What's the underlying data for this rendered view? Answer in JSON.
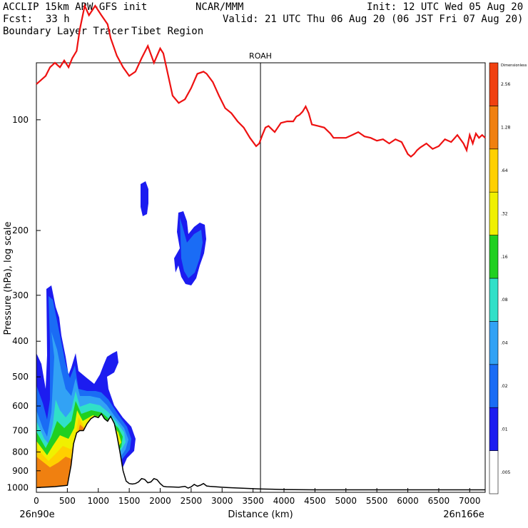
{
  "header": {
    "model": "ACCLIP 15km ARW-GFS init",
    "org": "NCAR/MMM",
    "init": "Init: 12 UTC Wed 05 Aug 20",
    "fcst_label": "Fcst:",
    "fcst_value": "33 h",
    "valid": "Valid: 21 UTC Thu 06 Aug 20 (06 JST Fri 07 Aug 20)",
    "product": "Boundary Layer Tracer",
    "region": "Tibet Region"
  },
  "chart_data": {
    "type": "contour_cross_section",
    "title": "ROAH",
    "xlabel": "Distance (km)",
    "ylabel": "Pressure (hPa), log scale",
    "x_start_label": "26n90e",
    "x_end_label": "26n166e",
    "xlim": [
      0,
      7250
    ],
    "ylim": [
      1030,
      70
    ],
    "y_scale": "log",
    "x_ticks": [
      0,
      500,
      1000,
      1500,
      2000,
      2500,
      3000,
      3500,
      4000,
      4500,
      5000,
      5500,
      6000,
      6500,
      7000
    ],
    "y_ticks": [
      100,
      200,
      300,
      400,
      500,
      600,
      700,
      800,
      900,
      1000
    ],
    "vertical_marker_km": 3620,
    "colorbar": {
      "title": "Dimensionless",
      "labels": [
        ".005",
        ".01",
        ".02",
        ".04",
        ".08",
        ".16",
        ".32",
        ".64",
        "1.28",
        "2.56"
      ],
      "colors": [
        "#ffffff",
        "#1c1cf0",
        "#1a6cf5",
        "#32a2f5",
        "#30e0c8",
        "#20d020",
        "#f0f000",
        "#ffd000",
        "#f08010",
        "#f04010"
      ]
    },
    "tropopause": {
      "color": "#ee1111",
      "x": [
        0,
        150,
        220,
        300,
        380,
        450,
        520,
        580,
        650,
        700,
        780,
        850,
        950,
        1050,
        1150,
        1200,
        1300,
        1400,
        1500,
        1600,
        1700,
        1800,
        1900,
        2000,
        2050,
        2100,
        2200,
        2300,
        2400,
        2500,
        2600,
        2700,
        2750,
        2850,
        2950,
        3050,
        3150,
        3250,
        3350,
        3450,
        3550,
        3600,
        3650,
        3700,
        3750,
        3850,
        3950,
        4050,
        4150,
        4200,
        4250,
        4300,
        4350,
        4400,
        4450,
        4550,
        4650,
        4750,
        4800,
        4900,
        5000,
        5100,
        5200,
        5300,
        5400,
        5500,
        5600,
        5700,
        5800,
        5900,
        6000,
        6050,
        6100,
        6150,
        6200,
        6300,
        6400,
        6500,
        6600,
        6700,
        6800,
        6900,
        6950,
        7000,
        7050,
        7100,
        7150,
        7200,
        7250
      ],
      "p": [
        80,
        76,
        72,
        70,
        72,
        69,
        72,
        68,
        65,
        57,
        49,
        52,
        49,
        52,
        55,
        60,
        67,
        72,
        76,
        74,
        68,
        63,
        70,
        64,
        66,
        72,
        86,
        90,
        88,
        82,
        75,
        74,
        75,
        79,
        86,
        93,
        96,
        101,
        105,
        112,
        118,
        116,
        110,
        105,
        104,
        108,
        102,
        101,
        101,
        98,
        97,
        95,
        92,
        96,
        103,
        104,
        105,
        109,
        112,
        112,
        112,
        110,
        108,
        111,
        112,
        114,
        113,
        116,
        113,
        115,
        124,
        126,
        124,
        121,
        119,
        116,
        120,
        118,
        113,
        115,
        110,
        116,
        121,
        110,
        116,
        109,
        112,
        110,
        112
      ]
    },
    "terrain": {
      "color": "#000000",
      "x": [
        0,
        100,
        200,
        300,
        400,
        500,
        560,
        600,
        650,
        700,
        760,
        820,
        880,
        940,
        1000,
        1050,
        1100,
        1150,
        1200,
        1260,
        1300,
        1350,
        1400,
        1450,
        1500,
        1550,
        1600,
        1650,
        1700,
        1750,
        1800,
        1850,
        1900,
        1950,
        2000,
        2050,
        2100,
        2200,
        2300,
        2400,
        2450,
        2500,
        2550,
        2600,
        2650,
        2700,
        2750,
        2800,
        2900,
        3000,
        3100,
        3200,
        3400,
        3600,
        3800,
        4000,
        4500,
        5000,
        5500,
        6000,
        6500,
        7000,
        7250
      ],
      "p": [
        1000,
        998,
        996,
        994,
        990,
        986,
        870,
        760,
        710,
        700,
        700,
        670,
        650,
        640,
        645,
        630,
        650,
        660,
        640,
        670,
        720,
        800,
        900,
        960,
        975,
        978,
        975,
        965,
        945,
        950,
        970,
        965,
        945,
        952,
        975,
        992,
        995,
        996,
        998,
        992,
        1003,
        995,
        980,
        991,
        985,
        975,
        990,
        992,
        995,
        998,
        1000,
        1002,
        1005,
        1008,
        1010,
        1012,
        1014,
        1014,
        1014,
        1014,
        1014,
        1014,
        1014
      ]
    }
  }
}
